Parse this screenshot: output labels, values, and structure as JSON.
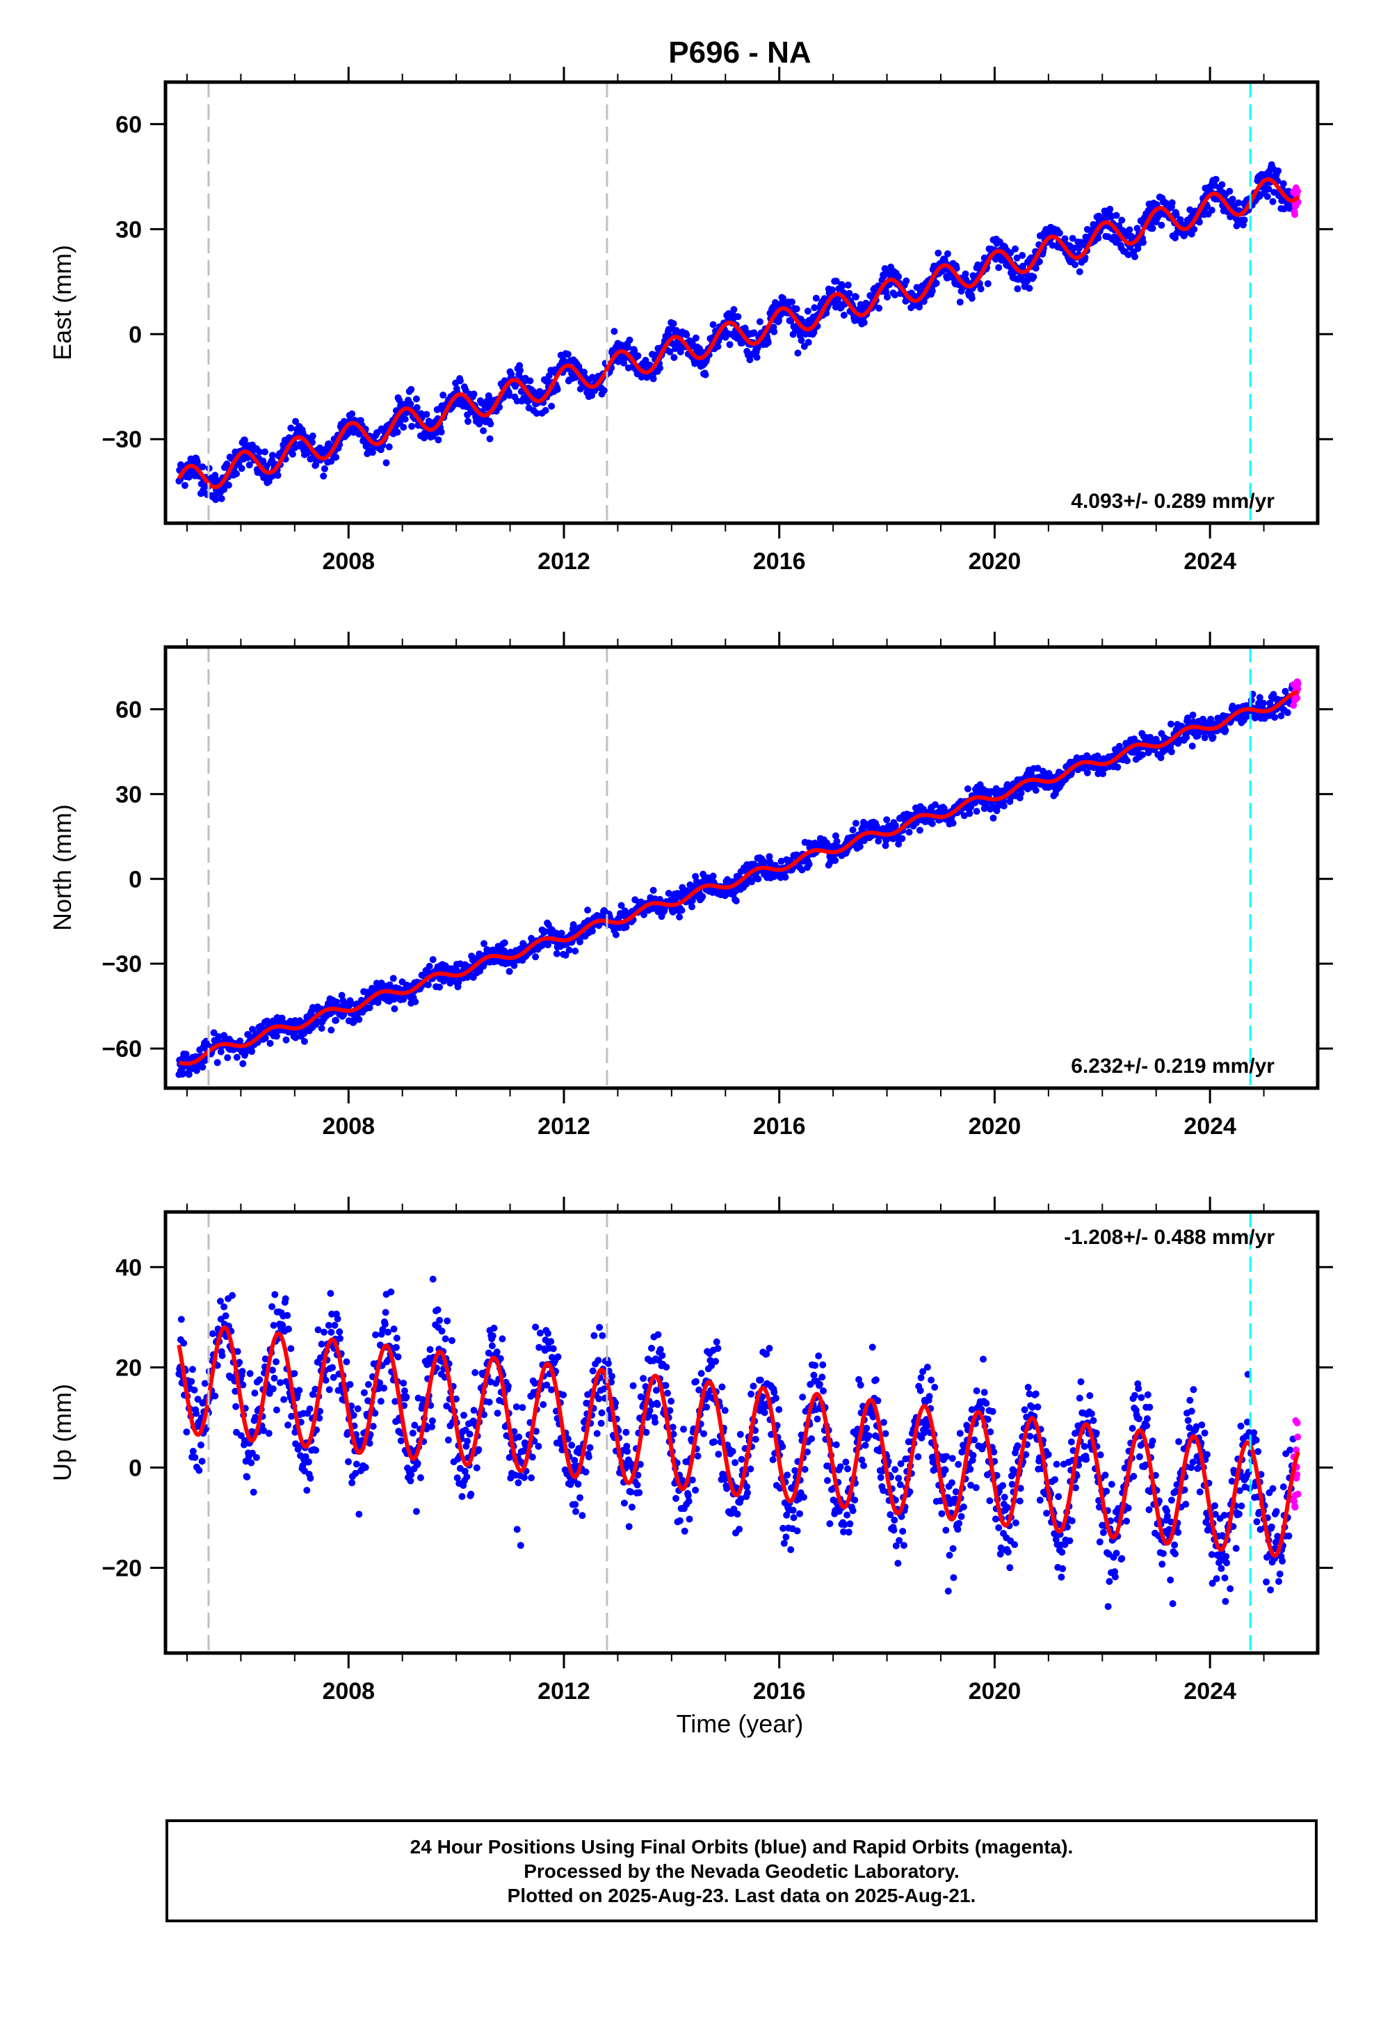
{
  "title": "P696 - NA",
  "xlabel": "Time (year)",
  "caption": {
    "line1": "24 Hour Positions Using Final Orbits (blue) and Rapid Orbits (magenta).",
    "line2": "Processed by the Nevada Geodetic Laboratory.",
    "line3": "Plotted on 2025-Aug-23. Last data on 2025-Aug-21."
  },
  "colors": {
    "final": "#0000ff",
    "rapid": "#ff00ff",
    "model": "#ff0000",
    "equipment_change": "#c0c0c0",
    "recent_event": "#00ffff"
  },
  "chart_data": [
    {
      "type": "scatter",
      "component": "East",
      "ylabel": "East (mm)",
      "xlim": [
        2004.6,
        2026.0
      ],
      "ylim": [
        -54,
        72
      ],
      "xticks": [
        2008,
        2012,
        2016,
        2020,
        2024
      ],
      "xtick_labels": [
        "2008",
        "2012",
        "2016",
        "2020",
        "2024"
      ],
      "yticks": [
        -30,
        0,
        30,
        60
      ],
      "ytick_labels": [
        "−30",
        "0",
        "30",
        "60"
      ],
      "rate_label": "4.093+/- 0.289 mm/yr",
      "rate_label_position": "bottom-right",
      "rate_mm_per_yr": 4.093,
      "reference": {
        "x": 2004.85,
        "y": -42.5
      },
      "annual_amplitude": 4.0,
      "annual_phase_peak": 0.05,
      "noise": 2.2,
      "x_start": 2004.85,
      "x_end_final": 2025.55,
      "x_end_rapid": 2025.64,
      "vlines_gray": [
        2005.4,
        2012.8
      ],
      "vline_cyan": 2024.75
    },
    {
      "type": "scatter",
      "component": "North",
      "ylabel": "North (mm)",
      "xlim": [
        2004.6,
        2026.0
      ],
      "ylim": [
        -74,
        82
      ],
      "xticks": [
        2008,
        2012,
        2016,
        2020,
        2024
      ],
      "xtick_labels": [
        "2008",
        "2012",
        "2016",
        "2020",
        "2024"
      ],
      "yticks": [
        -60,
        -30,
        0,
        30,
        60
      ],
      "ytick_labels": [
        "−60",
        "−30",
        "0",
        "30",
        "60"
      ],
      "rate_label": "6.232+/- 0.219 mm/yr",
      "rate_label_position": "bottom-right",
      "rate_mm_per_yr": 6.232,
      "reference": {
        "x": 2004.85,
        "y": -65.0
      },
      "annual_amplitude": 1.6,
      "annual_phase_peak": 0.6,
      "noise": 2.0,
      "x_start": 2004.85,
      "x_end_final": 2025.55,
      "x_end_rapid": 2025.64,
      "vlines_gray": [
        2005.4,
        2012.8
      ],
      "vline_cyan": 2024.75
    },
    {
      "type": "scatter",
      "component": "Up",
      "ylabel": "Up (mm)",
      "xlim": [
        2004.6,
        2026.0
      ],
      "ylim": [
        -37,
        51
      ],
      "xticks": [
        2008,
        2012,
        2016,
        2020,
        2024
      ],
      "xtick_labels": [
        "2008",
        "2012",
        "2016",
        "2020",
        "2024"
      ],
      "yticks": [
        -20,
        0,
        20,
        40
      ],
      "ytick_labels": [
        "−20",
        "0",
        "20",
        "40"
      ],
      "rate_label": "-1.208+/- 0.488 mm/yr",
      "rate_label_position": "top-right",
      "rate_mm_per_yr": -1.208,
      "reference": {
        "x": 2004.85,
        "y": 18.0
      },
      "annual_amplitude": 11.0,
      "annual_phase_peak": 0.7,
      "noise": 5.0,
      "x_start": 2004.85,
      "x_end_final": 2025.55,
      "x_end_rapid": 2025.64,
      "vlines_gray": [
        2005.4,
        2012.8
      ],
      "vline_cyan": 2024.75
    }
  ]
}
